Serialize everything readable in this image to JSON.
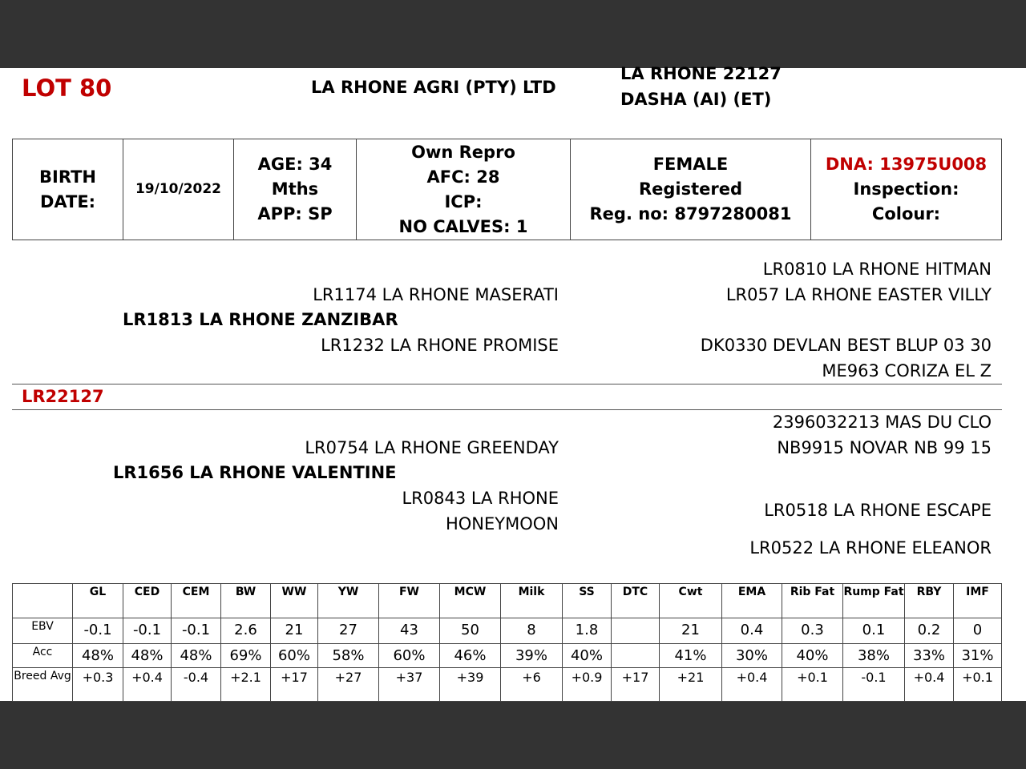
{
  "header": {
    "lot": "LOT 80",
    "breeder": "LA RHONE AGRI (PTY) LTD",
    "name_line1": "LA RHONE 22127",
    "name_line2": "DASHA (AI) (ET)"
  },
  "info": {
    "birth_label_1": "BIRTH",
    "birth_label_2": "DATE:",
    "birth_date": "19/10/2022",
    "age_1": "AGE: 34",
    "age_2": "Mths",
    "app": "APP: SP",
    "repro_1": "Own Repro",
    "afc": "AFC: 28",
    "icp": "ICP:",
    "calves": "NO CALVES: 1",
    "sex": "FEMALE",
    "status": "Registered",
    "reg": "Reg. no: 8797280081",
    "dna": "DNA: 13975U008",
    "inspection": "Inspection:",
    "colour": "Colour:"
  },
  "pedigree": {
    "id": "LR22127",
    "sire": "LR1813 LA RHONE ZANZIBAR",
    "sire_sire": "LR1174 LA RHONE MASERATI",
    "sire_dam": "LR1232 LA RHONE PROMISE",
    "sss": "LR0810 LA RHONE HITMAN",
    "ssd": "LR057 LA RHONE EASTER VILLY",
    "sds": "DK0330 DEVLAN BEST BLUP 03 30",
    "sdd": "ME963 CORIZA EL Z",
    "dam": "LR1656 LA RHONE VALENTINE",
    "dam_sire": "LR0754 LA RHONE GREENDAY",
    "dam_dam_1": "LR0843 LA RHONE",
    "dam_dam_2": "HONEYMOON",
    "dss": "2396032213 MAS DU CLO",
    "dsd": "NB9915 NOVAR NB 99 15",
    "dds": "LR0518 LA RHONE ESCAPE",
    "ddd": "LR0522 LA RHONE ELEANOR"
  },
  "ebv": {
    "headers": [
      "GL",
      "CED",
      "CEM",
      "BW",
      "WW",
      "YW",
      "FW",
      "MCW",
      "Milk",
      "SS",
      "DTC",
      "Cwt",
      "EMA",
      "Rib Fat",
      "Rump Fat",
      "RBY",
      "IMF"
    ],
    "rows": [
      {
        "label": "EBV",
        "values": [
          "-0.1",
          "-0.1",
          "-0.1",
          "2.6",
          "21",
          "27",
          "43",
          "50",
          "8",
          "1.8",
          "",
          "21",
          "0.4",
          "0.3",
          "0.1",
          "0.2",
          "0"
        ]
      },
      {
        "label": "Acc",
        "values": [
          "48%",
          "48%",
          "48%",
          "69%",
          "60%",
          "58%",
          "60%",
          "46%",
          "39%",
          "40%",
          "",
          "41%",
          "30%",
          "40%",
          "38%",
          "33%",
          "31%"
        ]
      },
      {
        "label": "Breed Avg",
        "values": [
          "+0.3",
          "+0.4",
          "-0.4",
          "+2.1",
          "+17",
          "+27",
          "+37",
          "+39",
          "+6",
          "+0.9",
          "+17",
          "+21",
          "+0.4",
          "+0.1",
          "-0.1",
          "+0.4",
          "+0.1"
        ]
      }
    ]
  }
}
